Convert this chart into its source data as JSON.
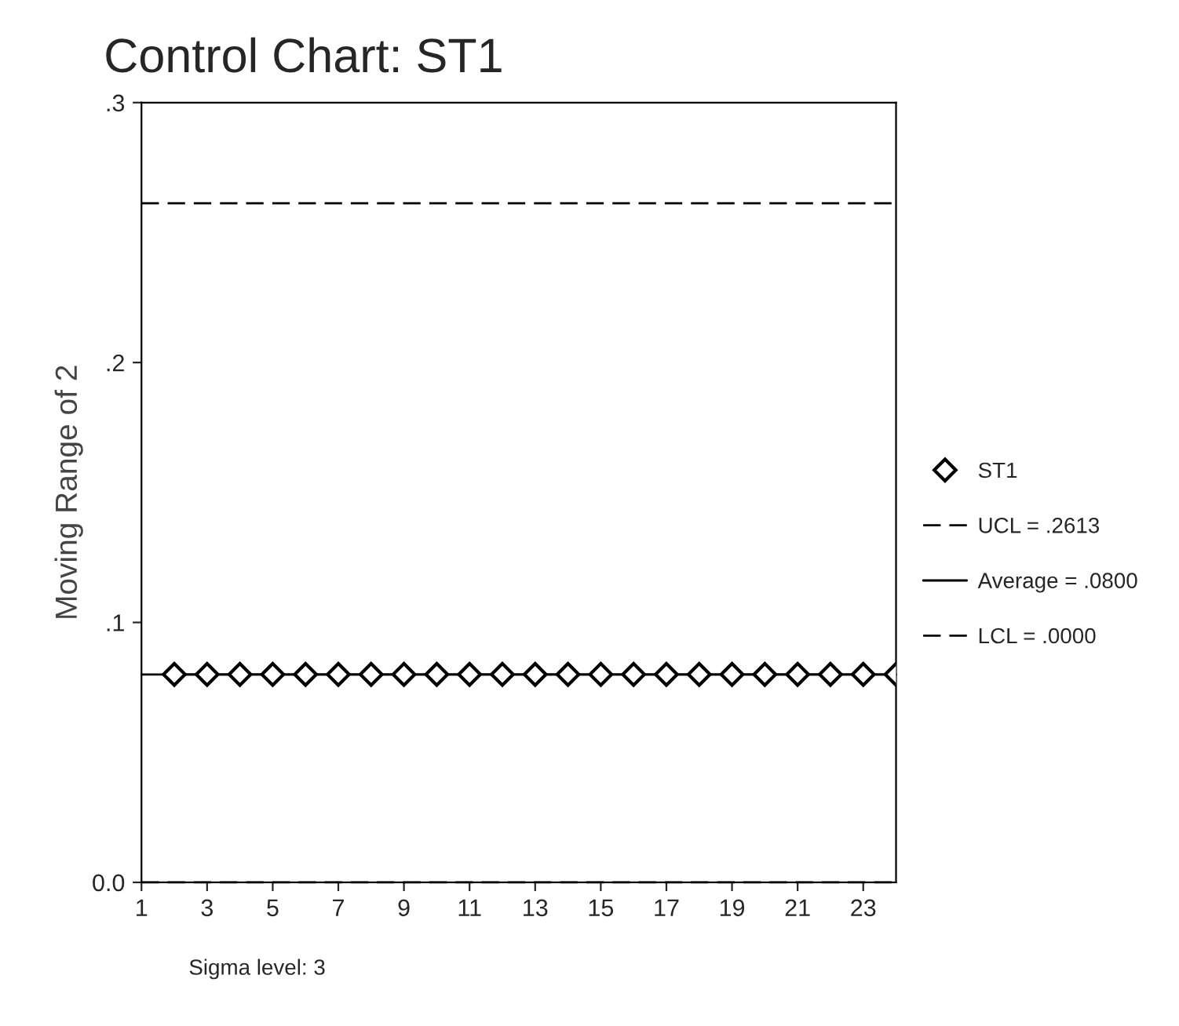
{
  "chart_data": {
    "type": "line",
    "title": "Control Chart: ST1",
    "ylabel": "Moving Range of 2",
    "x": [
      2,
      3,
      4,
      5,
      6,
      7,
      8,
      9,
      10,
      11,
      12,
      13,
      14,
      15,
      16,
      17,
      18,
      19,
      20,
      21,
      22,
      23,
      24
    ],
    "series": [
      {
        "name": "ST1",
        "color": "#000000",
        "values": [
          0.08,
          0.08,
          0.08,
          0.08,
          0.08,
          0.08,
          0.08,
          0.08,
          0.08,
          0.08,
          0.08,
          0.08,
          0.08,
          0.08,
          0.08,
          0.08,
          0.08,
          0.08,
          0.08,
          0.08,
          0.08,
          0.08,
          0.08
        ]
      }
    ],
    "marker": "diamond",
    "line_style": "solid",
    "xlim": [
      1,
      24
    ],
    "xticks": [
      1,
      3,
      5,
      7,
      9,
      11,
      13,
      15,
      17,
      19,
      21,
      23
    ],
    "ylim": [
      0,
      0.3
    ],
    "yticks": [
      {
        "value": 0,
        "label": "0.0"
      },
      {
        "value": 0.1,
        "label": ".1"
      },
      {
        "value": 0.2,
        "label": ".2"
      },
      {
        "value": 0.3,
        "label": ".3"
      }
    ],
    "ref_lines": [
      {
        "axis": "y",
        "value": 0.2613,
        "label": "UCL = .2613",
        "line_style": "dashed",
        "color": "#000000"
      },
      {
        "axis": "y",
        "value": 0.08,
        "label": "Average = .0800",
        "line_style": "solid",
        "color": "#000000"
      },
      {
        "axis": "y",
        "value": 0,
        "label": "LCL = .0000",
        "line_style": "dashed",
        "color": "#000000"
      }
    ],
    "annotations": [
      "Sigma level: 3"
    ],
    "grid": false,
    "legend": "right"
  }
}
